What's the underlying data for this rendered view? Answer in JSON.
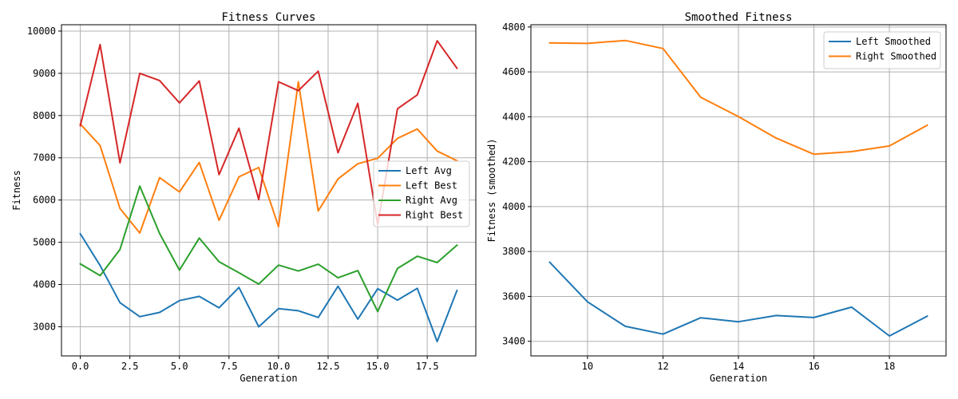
{
  "chart_data": [
    {
      "type": "line",
      "title": "Fitness Curves",
      "xlabel": "Generation",
      "ylabel": "Fitness",
      "xlim": [
        -0.95,
        19.95
      ],
      "ylim": [
        2310,
        10150
      ],
      "xticks": [
        0,
        2.5,
        5,
        7.5,
        10,
        12.5,
        15,
        17.5
      ],
      "xtick_labels": [
        "0.0",
        "2.5",
        "5.0",
        "7.5",
        "10.0",
        "12.5",
        "15.0",
        "17.5"
      ],
      "yticks": [
        3000,
        4000,
        5000,
        6000,
        7000,
        8000,
        9000,
        10000
      ],
      "ytick_labels": [
        "3000",
        "4000",
        "5000",
        "6000",
        "7000",
        "8000",
        "9000",
        "10000"
      ],
      "grid": true,
      "legend_position": "center-right",
      "x": [
        0,
        1,
        2,
        3,
        4,
        5,
        6,
        7,
        8,
        9,
        10,
        11,
        12,
        13,
        14,
        15,
        16,
        17,
        18,
        19
      ],
      "series": [
        {
          "name": "Left Avg",
          "color": "#1f77b4",
          "values": [
            5200,
            4450,
            3570,
            3240,
            3340,
            3620,
            3720,
            3450,
            3930,
            3000,
            3430,
            3380,
            3220,
            3960,
            3180,
            3900,
            3630,
            3910,
            2650,
            3860
          ]
        },
        {
          "name": "Left Best",
          "color": "#ff7f0e",
          "values": [
            7800,
            7290,
            5800,
            5220,
            6530,
            6190,
            6890,
            5520,
            6550,
            6770,
            5370,
            8800,
            5740,
            6500,
            6860,
            6990,
            7460,
            7680,
            7160,
            6930
          ]
        },
        {
          "name": "Right Avg",
          "color": "#2ca02c",
          "values": [
            4490,
            4210,
            4830,
            6330,
            5210,
            4340,
            5100,
            4540,
            4280,
            4010,
            4460,
            4320,
            4480,
            4160,
            4330,
            3360,
            4380,
            4670,
            4520,
            4930
          ]
        },
        {
          "name": "Right Best",
          "color": "#d62728",
          "values": [
            7760,
            9680,
            6880,
            9000,
            8830,
            8300,
            8820,
            6600,
            7700,
            6010,
            8800,
            8590,
            9050,
            7120,
            8290,
            5420,
            8160,
            8490,
            9770,
            9120
          ]
        }
      ]
    },
    {
      "type": "line",
      "title": "Smoothed Fitness",
      "xlabel": "Generation",
      "ylabel": "Fitness (smoothed)",
      "xlim": [
        8.5,
        19.5
      ],
      "ylim": [
        3335,
        4810
      ],
      "xticks": [
        10,
        12,
        14,
        16,
        18
      ],
      "xtick_labels": [
        "10",
        "12",
        "14",
        "16",
        "18"
      ],
      "yticks": [
        3400,
        3600,
        3800,
        4000,
        4200,
        4400,
        4600,
        4800
      ],
      "ytick_labels": [
        "3400",
        "3600",
        "3800",
        "4000",
        "4200",
        "4400",
        "4600",
        "4800"
      ],
      "grid": true,
      "legend_position": "top-right",
      "x": [
        9,
        10,
        11,
        12,
        13,
        14,
        15,
        16,
        17,
        18,
        19
      ],
      "series": [
        {
          "name": "Left Smoothed",
          "color": "#1f77b4",
          "values": [
            3752,
            3576,
            3467,
            3432,
            3505,
            3487,
            3515,
            3506,
            3552,
            3424,
            3512
          ]
        },
        {
          "name": "Right Smoothed",
          "color": "#ff7f0e",
          "values": [
            4729,
            4727,
            4740,
            4704,
            4487,
            4401,
            4305,
            4233,
            4245,
            4270,
            4362
          ]
        }
      ]
    }
  ]
}
